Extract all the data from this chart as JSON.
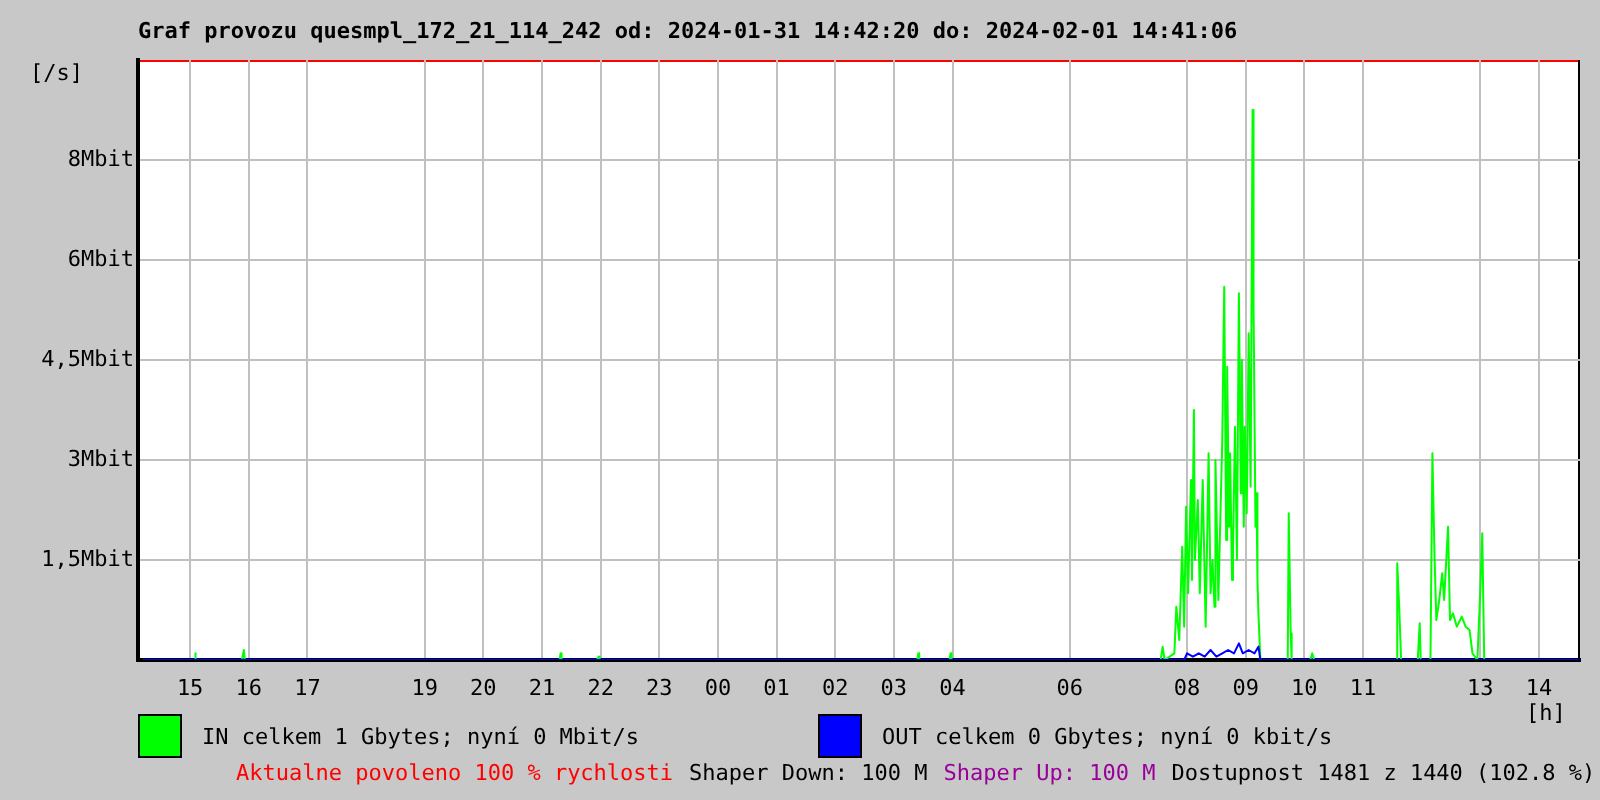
{
  "chart_data": {
    "type": "line",
    "title": "Graf provozu quesmpl_172_21_114_242 od: 2024-01-31 14:42:20 do: 2024-02-01 14:41:06",
    "ylabel": "[/s]",
    "xlabel": "[h]",
    "xlim": [
      "2024-01-31T14:12",
      "2024-02-01T14:42"
    ],
    "xticks": [
      {
        "value": "2024-01-31T15:00",
        "label": "15"
      },
      {
        "value": "2024-01-31T16:00",
        "label": "16"
      },
      {
        "value": "2024-01-31T17:00",
        "label": "17"
      },
      {
        "value": "2024-01-31T19:00",
        "label": "19"
      },
      {
        "value": "2024-01-31T20:00",
        "label": "20"
      },
      {
        "value": "2024-01-31T21:00",
        "label": "21"
      },
      {
        "value": "2024-01-31T22:00",
        "label": "22"
      },
      {
        "value": "2024-01-31T23:00",
        "label": "23"
      },
      {
        "value": "2024-02-01T00:00",
        "label": "00"
      },
      {
        "value": "2024-02-01T01:00",
        "label": "01"
      },
      {
        "value": "2024-02-01T02:00",
        "label": "02"
      },
      {
        "value": "2024-02-01T03:00",
        "label": "03"
      },
      {
        "value": "2024-02-01T04:00",
        "label": "04"
      },
      {
        "value": "2024-02-01T06:00",
        "label": "06"
      },
      {
        "value": "2024-02-01T08:00",
        "label": "08"
      },
      {
        "value": "2024-02-01T09:00",
        "label": "09"
      },
      {
        "value": "2024-02-01T10:00",
        "label": "10"
      },
      {
        "value": "2024-02-01T11:00",
        "label": "11"
      },
      {
        "value": "2024-02-01T13:00",
        "label": "13"
      },
      {
        "value": "2024-02-01T14:00",
        "label": "14"
      }
    ],
    "ylim": [
      0,
      9
    ],
    "yticks": [
      {
        "value": 1.5,
        "label": "1,5Mbit"
      },
      {
        "value": 3,
        "label": "3Mbit"
      },
      {
        "value": 4.5,
        "label": "4,5Mbit"
      },
      {
        "value": 6,
        "label": "6Mbit"
      },
      {
        "value": 7.5,
        "label": "8Mbit"
      }
    ],
    "grid": true,
    "legend": "bottom",
    "marker": "none",
    "line_style": "solid",
    "annotations": [
      "Aktualne povoleno 100 % rychlosti",
      "Shaper Down: 100 M",
      "Shaper Up: 100 M",
      "Dostupnost 1481 z 1440 (102.8 %)"
    ],
    "series": [
      {
        "name": "IN celkem 1 Gbytes; nyní 0 Mbit/s",
        "color": "#00ff00",
        "x": [
          "2024-01-31T14:12",
          "2024-01-31T15:04",
          "2024-01-31T15:05",
          "2024-01-31T15:06",
          "2024-01-31T15:53",
          "2024-01-31T15:55",
          "2024-01-31T15:56",
          "2024-01-31T21:18",
          "2024-01-31T21:19",
          "2024-01-31T21:20",
          "2024-01-31T21:56",
          "2024-01-31T21:58",
          "2024-01-31T21:59",
          "2024-02-01T03:24",
          "2024-02-01T03:25",
          "2024-02-01T03:26",
          "2024-02-01T03:57",
          "2024-02-01T03:58",
          "2024-02-01T03:59",
          "2024-02-01T07:33",
          "2024-02-01T07:35",
          "2024-02-01T07:37",
          "2024-02-01T07:47",
          "2024-02-01T07:49",
          "2024-02-01T07:52",
          "2024-02-01T07:55",
          "2024-02-01T07:57",
          "2024-02-01T07:59",
          "2024-02-01T08:01",
          "2024-02-01T08:04",
          "2024-02-01T08:05",
          "2024-02-01T08:07",
          "2024-02-01T08:08",
          "2024-02-01T08:11",
          "2024-02-01T08:13",
          "2024-02-01T08:16",
          "2024-02-01T08:19",
          "2024-02-01T08:22",
          "2024-02-01T08:24",
          "2024-02-01T08:26",
          "2024-02-01T08:28",
          "2024-02-01T08:29",
          "2024-02-01T08:32",
          "2024-02-01T08:36",
          "2024-02-01T08:38",
          "2024-02-01T08:40",
          "2024-02-01T08:41",
          "2024-02-01T08:43",
          "2024-02-01T08:44",
          "2024-02-01T08:46",
          "2024-02-01T08:47",
          "2024-02-01T08:49",
          "2024-02-01T08:51",
          "2024-02-01T08:53",
          "2024-02-01T08:55",
          "2024-02-01T08:56",
          "2024-02-01T08:58",
          "2024-02-01T08:59",
          "2024-02-01T09:01",
          "2024-02-01T09:03",
          "2024-02-01T09:05",
          "2024-02-01T09:07",
          "2024-02-01T09:08",
          "2024-02-01T09:10",
          "2024-02-01T09:11",
          "2024-02-01T09:12",
          "2024-02-01T09:13",
          "2024-02-01T09:15",
          "2024-02-01T09:43",
          "2024-02-01T09:44",
          "2024-02-01T09:46",
          "2024-02-01T09:47",
          "2024-02-01T10:06",
          "2024-02-01T10:08",
          "2024-02-01T10:10",
          "2024-02-01T11:34",
          "2024-02-01T11:35",
          "2024-02-01T11:37",
          "2024-02-01T11:39",
          "2024-02-01T11:56",
          "2024-02-01T11:58",
          "2024-02-01T11:59",
          "2024-02-01T12:09",
          "2024-02-01T12:11",
          "2024-02-01T12:13",
          "2024-02-01T12:15",
          "2024-02-01T12:18",
          "2024-02-01T12:21",
          "2024-02-01T12:23",
          "2024-02-01T12:27",
          "2024-02-01T12:29",
          "2024-02-01T12:32",
          "2024-02-01T12:36",
          "2024-02-01T12:41",
          "2024-02-01T12:45",
          "2024-02-01T12:49",
          "2024-02-01T12:52",
          "2024-02-01T12:57",
          "2024-02-01T13:00",
          "2024-02-01T13:02",
          "2024-02-01T13:04",
          "2024-02-01T14:42"
        ],
        "values": [
          0,
          0,
          0.1,
          0,
          0,
          0.15,
          0,
          0,
          0.1,
          0,
          0,
          0.05,
          0,
          0,
          0.1,
          0,
          0,
          0.1,
          0,
          0,
          0.2,
          0,
          0.1,
          0.8,
          0.3,
          1.7,
          0.5,
          2.3,
          1.0,
          2.7,
          1.2,
          3.75,
          1.5,
          2.4,
          1.0,
          2.7,
          0.5,
          3.1,
          1.0,
          1.5,
          0.8,
          3.0,
          0.9,
          3.3,
          5.6,
          1.8,
          4.4,
          2.0,
          3.1,
          1.2,
          1.7,
          3.5,
          1.5,
          5.5,
          2.5,
          4.5,
          2.0,
          3.5,
          2.2,
          4.9,
          2.6,
          8.25,
          5.3,
          2.0,
          2.5,
          1.2,
          0.7,
          0,
          0,
          2.2,
          0.4,
          0,
          0,
          0.1,
          0,
          0,
          1.45,
          0.8,
          0,
          0,
          0.55,
          0,
          0,
          3.1,
          1.65,
          0.6,
          0.9,
          1.3,
          0.9,
          2.0,
          0.6,
          0.7,
          0.5,
          0.65,
          0.5,
          0.45,
          0.1,
          0,
          1.05,
          1.9,
          0,
          0
        ]
      },
      {
        "name": "OUT celkem 0 Gbytes; nyní 0 kbit/s",
        "color": "#0000ff",
        "x": [
          "2024-01-31T14:12",
          "2024-02-01T07:57",
          "2024-02-01T08:00",
          "2024-02-01T08:06",
          "2024-02-01T08:12",
          "2024-02-01T08:18",
          "2024-02-01T08:24",
          "2024-02-01T08:30",
          "2024-02-01T08:36",
          "2024-02-01T08:42",
          "2024-02-01T08:48",
          "2024-02-01T08:53",
          "2024-02-01T08:57",
          "2024-02-01T09:03",
          "2024-02-01T09:09",
          "2024-02-01T09:13",
          "2024-02-01T09:15",
          "2024-02-01T14:42"
        ],
        "values": [
          0,
          0,
          0.1,
          0.05,
          0.1,
          0.05,
          0.15,
          0.05,
          0.1,
          0.15,
          0.1,
          0.25,
          0.1,
          0.15,
          0.1,
          0.2,
          0,
          0
        ]
      }
    ]
  }
}
